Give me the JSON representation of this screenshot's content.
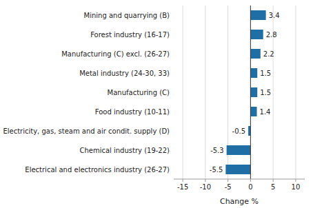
{
  "chart_data": {
    "type": "bar",
    "orientation": "horizontal",
    "categories": [
      "Electrical and electronics industry (26-27)",
      "Chemical industry (19-22)",
      "Electricity, gas, steam and air condit. supply (D)",
      "Food industry (10-11)",
      "Manufacturing (C)",
      "Metal industry (24-30, 33)",
      "Manufacturing (C) excl. (26-27)",
      "Forest industry (16-17)",
      "Mining and quarrying (B)"
    ],
    "values": [
      -5.5,
      -5.3,
      -0.5,
      1.4,
      1.5,
      1.5,
      2.2,
      2.8,
      3.4
    ],
    "color": "#1f6ea6",
    "xlabel": "Change %",
    "xlim": [
      -17,
      12
    ],
    "xticks": [
      -15,
      -10,
      -5,
      0,
      5,
      10
    ],
    "grid": true,
    "data_labels": true
  }
}
